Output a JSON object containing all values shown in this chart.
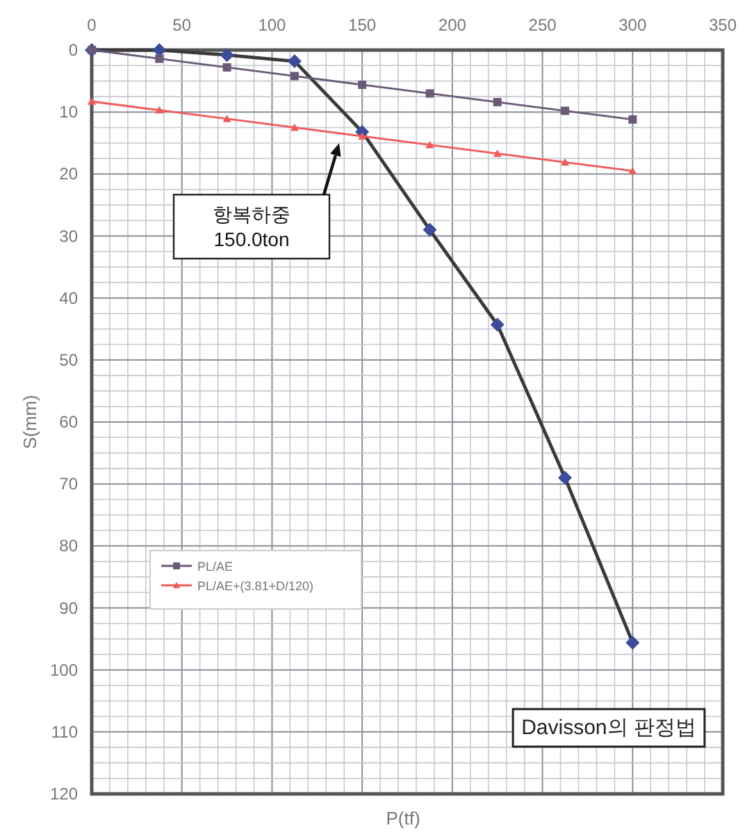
{
  "chart_data": {
    "type": "line",
    "xlabel": "P(tf)",
    "ylabel": "S(mm)",
    "x": [
      0,
      37.5,
      75,
      112.5,
      150,
      187.5,
      225,
      262.5,
      300
    ],
    "xlim": [
      0,
      350
    ],
    "xticks": [
      0,
      50,
      100,
      150,
      200,
      250,
      300,
      350
    ],
    "ylim": [
      120,
      0
    ],
    "yticks": [
      0,
      10,
      20,
      30,
      40,
      50,
      60,
      70,
      80,
      90,
      100,
      110,
      120
    ],
    "grid": true,
    "legend": "left",
    "line_style": "solid",
    "series": [
      {
        "color": "#3b4c9a",
        "marker": "diamond",
        "values": [
          0,
          0,
          0.8,
          1.8,
          13.2,
          29,
          44.3,
          69,
          95.6
        ]
      },
      {
        "name": "PL/AE",
        "color": "#6a5a78",
        "marker": "square",
        "values": [
          0,
          1.4,
          2.8,
          4.2,
          5.6,
          7.0,
          8.4,
          9.8,
          11.2
        ]
      },
      {
        "name": "PL/AE+(3.81+D/120)",
        "color": "#f05a5a",
        "marker": "triangle",
        "values": [
          8.3,
          9.7,
          11.1,
          12.5,
          13.9,
          15.3,
          16.7,
          18.1,
          19.5
        ]
      }
    ],
    "annotations": [
      "항복하중\n150.0ton",
      "Davisson의 판정법"
    ]
  }
}
